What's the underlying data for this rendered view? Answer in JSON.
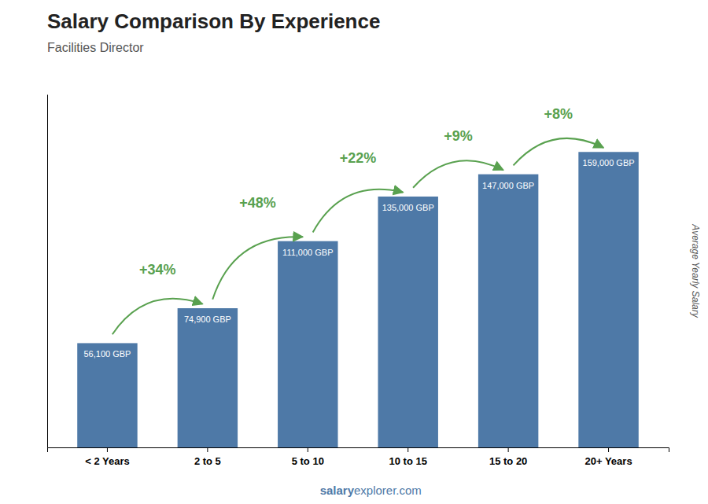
{
  "chart_data": {
    "type": "bar",
    "title": "Salary Comparison By Experience",
    "subtitle": "Facilities Director",
    "ylabel": "Average Yearly Salary",
    "categories": [
      "< 2 Years",
      "2 to 5",
      "5 to 10",
      "10 to 15",
      "15 to 20",
      "20+ Years"
    ],
    "values": [
      56100,
      74900,
      111000,
      135000,
      147000,
      159000
    ],
    "value_labels": [
      "56,100 GBP",
      "74,900 GBP",
      "111,000 GBP",
      "135,000 GBP",
      "147,000 GBP",
      "159,000 GBP"
    ],
    "data_labels": true,
    "pct_changes": [
      34,
      48,
      22,
      9,
      8
    ],
    "pct_change_labels": [
      "+34%",
      "+48%",
      "+22%",
      "+9%",
      "+8%"
    ],
    "annotations": [
      "salary",
      "explorer.com"
    ],
    "ylim": [
      0,
      190000
    ],
    "tick_labels": "x"
  }
}
